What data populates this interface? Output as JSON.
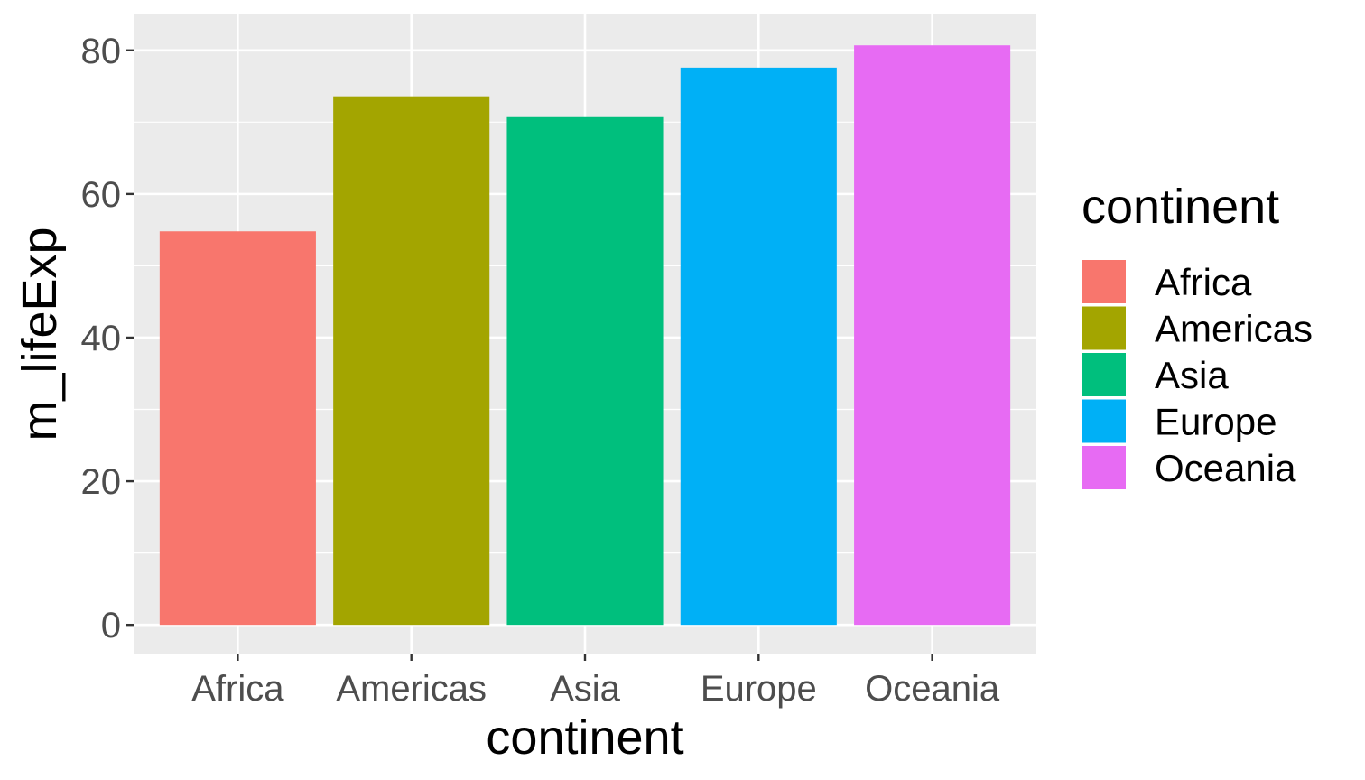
{
  "chart_data": {
    "type": "bar",
    "categories": [
      "Africa",
      "Americas",
      "Asia",
      "Europe",
      "Oceania"
    ],
    "values": [
      54.8,
      73.6,
      70.7,
      77.6,
      80.7
    ],
    "colors": [
      "#F8766D",
      "#A3A500",
      "#00BF7D",
      "#00B0F6",
      "#E76BF3"
    ],
    "xlabel": "continent",
    "ylabel": "m_lifeExp",
    "ylim": [
      -4,
      85
    ],
    "yticks": [
      0,
      20,
      40,
      60,
      80
    ],
    "ytick_labels": [
      "0",
      "20",
      "40",
      "60",
      "80"
    ],
    "grid": true,
    "legend": {
      "title": "continent",
      "position": "right",
      "items": [
        "Africa",
        "Americas",
        "Asia",
        "Europe",
        "Oceania"
      ]
    }
  }
}
